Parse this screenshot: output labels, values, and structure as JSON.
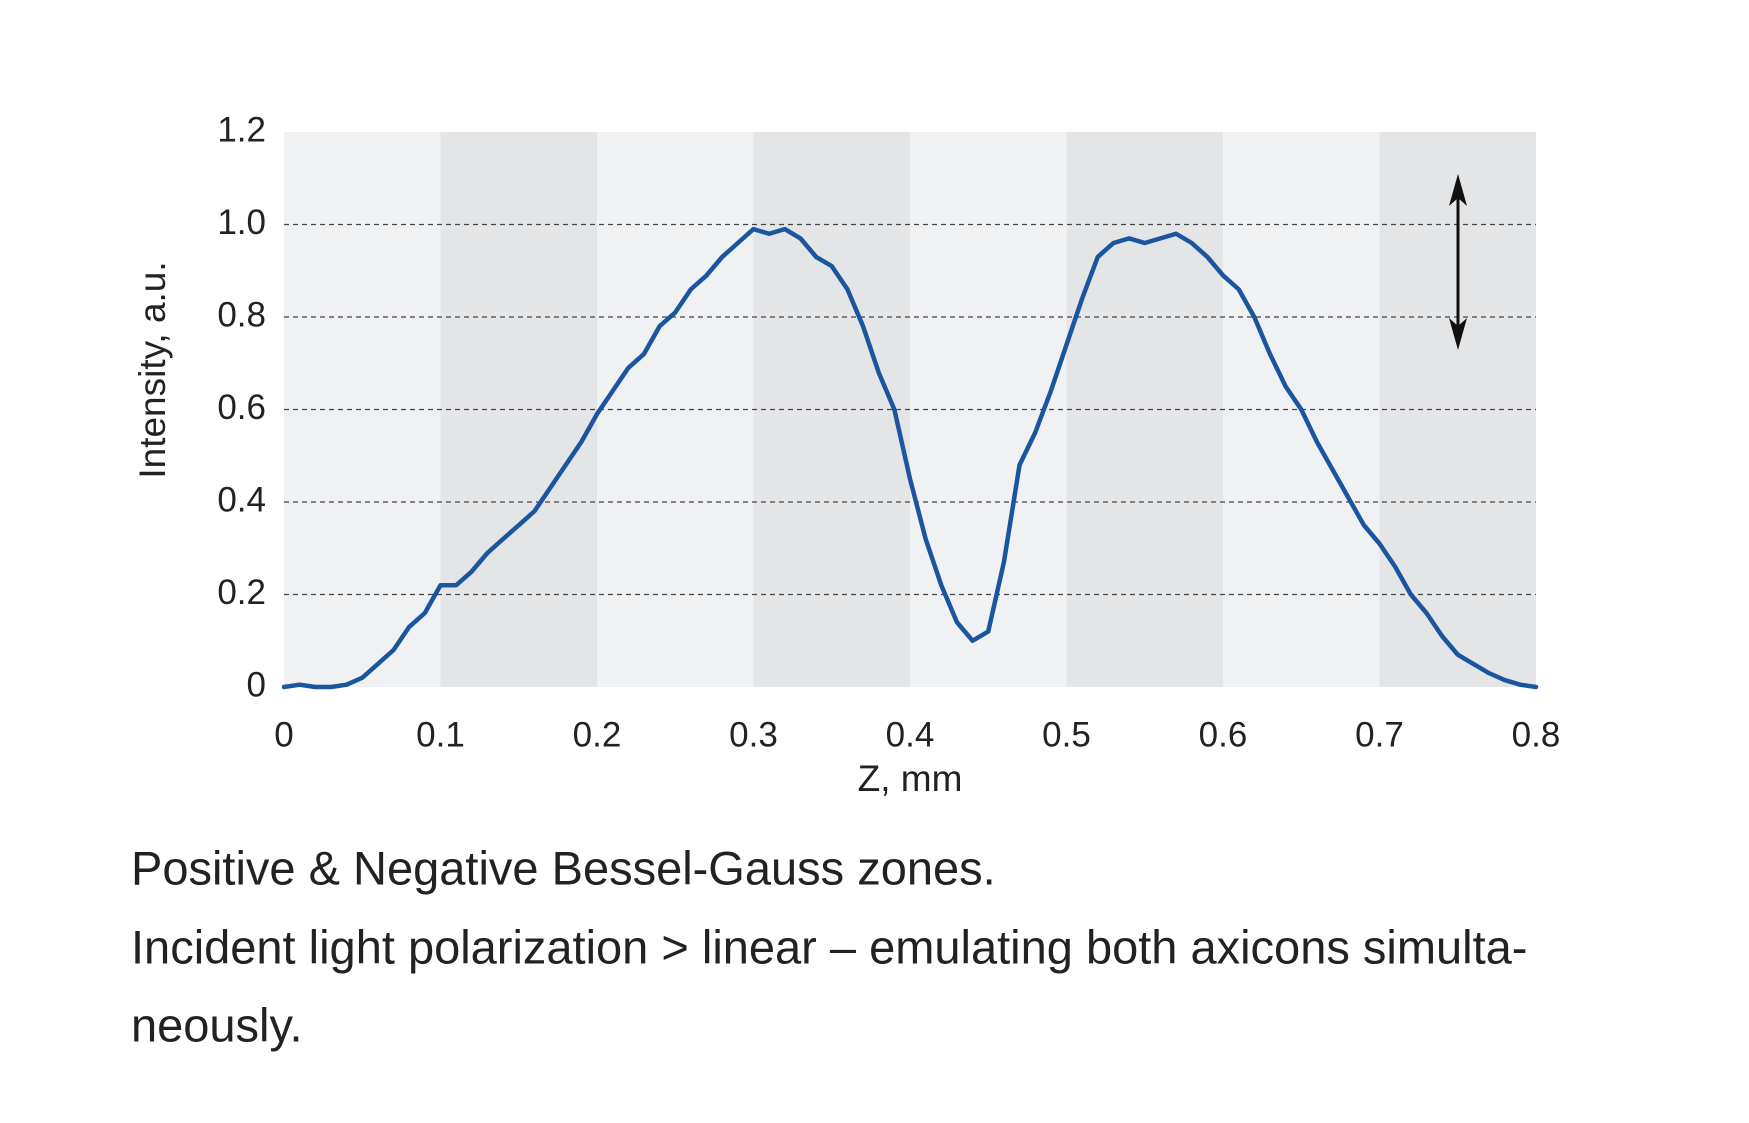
{
  "chart_data": {
    "type": "line",
    "xlabel": "Z, mm",
    "ylabel": "Intensity, a.u.",
    "xlim": [
      0,
      0.8
    ],
    "xticks": [
      0,
      0.1,
      0.2,
      0.3,
      0.4,
      0.5,
      0.6,
      0.7,
      0.8
    ],
    "ylim": [
      0,
      1.2
    ],
    "yticks": [
      0,
      0.2,
      0.4,
      0.6,
      0.8,
      {
        "value": 1,
        "label": "1.0"
      },
      1.2
    ],
    "grid": true,
    "series": [
      {
        "color": "#1a56a0",
        "x": [
          0,
          0.01,
          0.02,
          0.03,
          0.04,
          0.05,
          0.06,
          0.07,
          0.08,
          0.09,
          0.1,
          0.11,
          0.12,
          0.13,
          0.14,
          0.15,
          0.16,
          0.17,
          0.18,
          0.19,
          0.2,
          0.21,
          0.22,
          0.23,
          0.24,
          0.25,
          0.26,
          0.27,
          0.28,
          0.29,
          0.3,
          0.31,
          0.32,
          0.33,
          0.34,
          0.35,
          0.36,
          0.37,
          0.38,
          0.39,
          0.4,
          0.41,
          0.42,
          0.43,
          0.44,
          0.45,
          0.46,
          0.47,
          0.48,
          0.49,
          0.5,
          0.51,
          0.52,
          0.53,
          0.54,
          0.55,
          0.56,
          0.57,
          0.58,
          0.59,
          0.6,
          0.61,
          0.62,
          0.63,
          0.64,
          0.65,
          0.66,
          0.67,
          0.68,
          0.69,
          0.7,
          0.71,
          0.72,
          0.73,
          0.74,
          0.75,
          0.76,
          0.77,
          0.78,
          0.79,
          0.8
        ],
        "values": [
          0,
          0.005,
          0,
          0,
          0.005,
          0.02,
          0.05,
          0.08,
          0.13,
          0.16,
          0.22,
          0.22,
          0.25,
          0.29,
          0.32,
          0.35,
          0.38,
          0.43,
          0.48,
          0.53,
          0.59,
          0.64,
          0.69,
          0.72,
          0.78,
          0.81,
          0.86,
          0.89,
          0.93,
          0.96,
          0.99,
          0.98,
          0.99,
          0.97,
          0.93,
          0.91,
          0.86,
          0.78,
          0.68,
          0.6,
          0.45,
          0.32,
          0.22,
          0.14,
          0.1,
          0.12,
          0.27,
          0.48,
          0.55,
          0.64,
          0.74,
          0.84,
          0.93,
          0.96,
          0.97,
          0.96,
          0.97,
          0.98,
          0.96,
          0.93,
          0.89,
          0.86,
          0.8,
          0.72,
          0.65,
          0.6,
          0.53,
          0.47,
          0.41,
          0.35,
          0.31,
          0.26,
          0.2,
          0.16,
          0.11,
          0.07,
          0.05,
          0.03,
          0.015,
          0.005,
          0
        ]
      }
    ]
  },
  "caption": [
    "Positive & Negative Bessel-Gauss zones.",
    "Incident light polarization > linear – emulating both axicons simulta-",
    "neously."
  ]
}
